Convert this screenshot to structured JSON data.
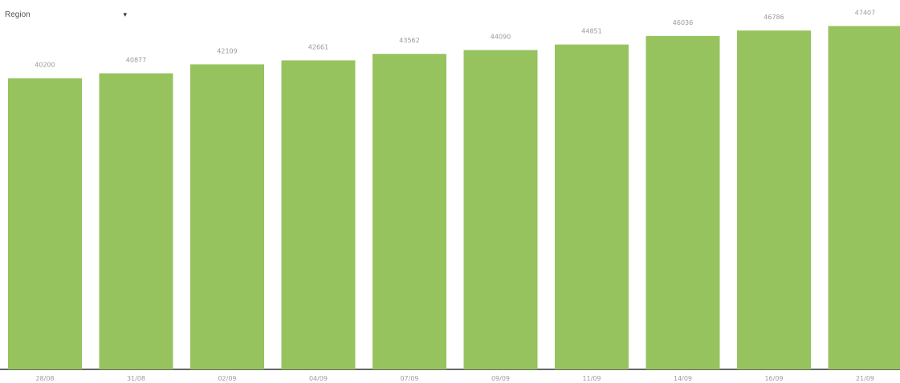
{
  "filter": {
    "selected": "Region",
    "caret": "▾"
  },
  "colors": {
    "bar": "#97c35f",
    "axis": "#333333",
    "label": "#9a9a9a"
  },
  "chart_data": {
    "type": "bar",
    "title": "",
    "xlabel": "",
    "ylabel": "",
    "categories": [
      "28/08",
      "31/08",
      "02/09",
      "04/09",
      "07/09",
      "09/09",
      "11/09",
      "14/09",
      "16/09",
      "21/09"
    ],
    "values": [
      40200,
      40877,
      42109,
      42661,
      43562,
      44090,
      44851,
      46036,
      46786,
      47407
    ],
    "data_labels": [
      "40200",
      "40877",
      "42109",
      "42661",
      "43562",
      "44090",
      "44851",
      "46036",
      "46786",
      "47407"
    ],
    "ylim": [
      0,
      51000
    ],
    "grid": false,
    "legend": "none"
  }
}
